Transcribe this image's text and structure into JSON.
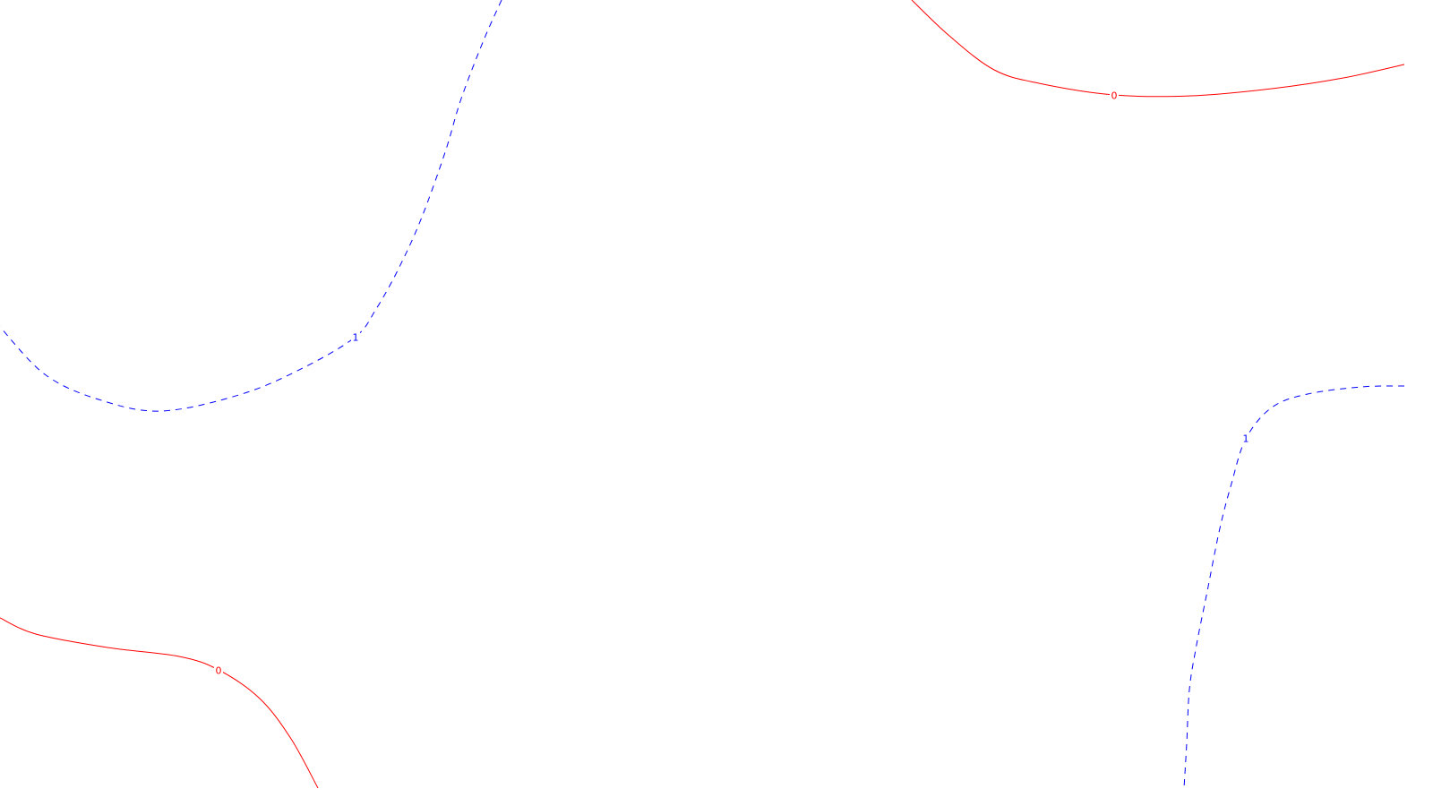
{
  "chart_data": {
    "type": "contour",
    "title": "",
    "xlabel": "",
    "ylabel": "",
    "grid": false,
    "legend": "none",
    "series": [
      {
        "level": "0",
        "color": "#ff0000",
        "dash": false,
        "curves": [
          {
            "points": [
              [
                1018,
                0
              ],
              [
                1060,
                40
              ],
              [
                1110,
                78
              ],
              [
                1160,
                93
              ],
              [
                1244,
                106
              ],
              [
                1330,
                107
              ],
              [
                1420,
                99
              ],
              [
                1500,
                87
              ],
              [
                1568,
                72
              ]
            ],
            "label": {
              "text": "0",
              "at": [
                1244,
                107
              ]
            }
          },
          {
            "points": [
              [
                0,
                690
              ],
              [
                40,
                708
              ],
              [
                120,
                723
              ],
              [
                200,
                733
              ],
              [
                244,
                748
              ],
              [
                290,
                780
              ],
              [
                325,
                825
              ],
              [
                355,
                880
              ]
            ],
            "label": {
              "text": "0",
              "at": [
                244,
                749
              ]
            }
          }
        ]
      },
      {
        "level": "1",
        "color": "#0000ff",
        "dash": true,
        "curves": [
          {
            "points": [
              [
                560,
                0
              ],
              [
                540,
                45
              ],
              [
                515,
                110
              ],
              [
                497,
                170
              ],
              [
                470,
                245
              ],
              [
                445,
                300
              ],
              [
                420,
                345
              ],
              [
                397,
                376
              ],
              [
                340,
                410
              ],
              [
                270,
                440
              ],
              [
                180,
                459
              ],
              [
                110,
                446
              ],
              [
                50,
                418
              ],
              [
                0,
                365
              ]
            ],
            "label": {
              "text": "1",
              "at": [
                397,
                377
              ]
            }
          },
          {
            "points": [
              [
                1568,
                431
              ],
              [
                1520,
                432
              ],
              [
                1460,
                440
              ],
              [
                1420,
                455
              ],
              [
                1391,
                490
              ],
              [
                1375,
                540
              ],
              [
                1362,
                590
              ],
              [
                1348,
                660
              ],
              [
                1336,
                720
              ],
              [
                1328,
                770
              ],
              [
                1325,
                830
              ],
              [
                1322,
                880
              ]
            ],
            "label": {
              "text": "1",
              "at": [
                1391,
                490
              ]
            }
          }
        ]
      }
    ]
  }
}
